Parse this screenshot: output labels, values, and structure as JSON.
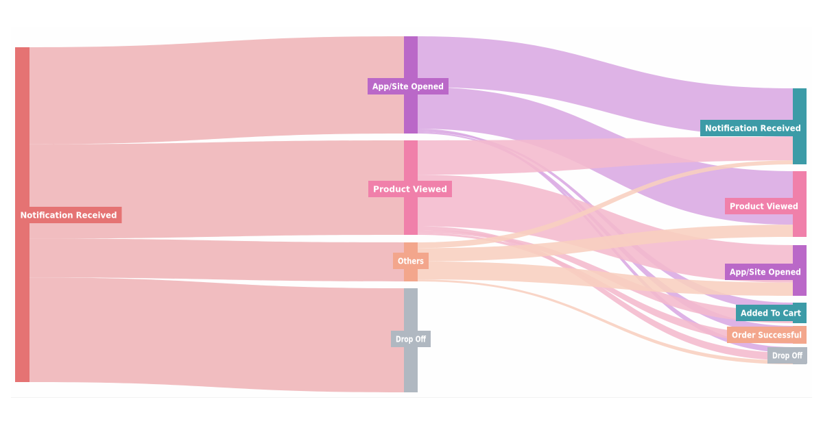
{
  "colors": {
    "notification": "#e57373",
    "app_site": "#ba68c8",
    "product": "#f080aa",
    "others": "#f3a68c",
    "drop_off": "#b0b8c1",
    "teal": "#3c9ba7",
    "link_notification": "#efb4b7",
    "link_app": "#d9a9e3",
    "link_product": "#f4b9cd",
    "link_others": "#f8cfbf"
  },
  "nodes": [
    {
      "id": "n0",
      "label": "Notification Received",
      "stage": 0,
      "color": "notification"
    },
    {
      "id": "n1",
      "label": "App/Site Opened",
      "stage": 1,
      "color": "app_site"
    },
    {
      "id": "n2",
      "label": "Product Viewed",
      "stage": 1,
      "color": "product"
    },
    {
      "id": "n3",
      "label": "Others",
      "stage": 1,
      "color": "others"
    },
    {
      "id": "n4",
      "label": "Drop Off",
      "stage": 1,
      "color": "drop_off"
    },
    {
      "id": "n5",
      "label": "Notification Received",
      "stage": 2,
      "color": "teal"
    },
    {
      "id": "n6",
      "label": "Product Viewed",
      "stage": 2,
      "color": "product"
    },
    {
      "id": "n7",
      "label": "App/Site Opened",
      "stage": 2,
      "color": "app_site"
    },
    {
      "id": "n8",
      "label": "Added To Cart",
      "stage": 2,
      "color": "teal"
    },
    {
      "id": "n9",
      "label": "Order Successful",
      "stage": 2,
      "color": "others"
    },
    {
      "id": "n10",
      "label": "Drop Off",
      "stage": 2,
      "color": "drop_off"
    }
  ],
  "links": [
    {
      "source": "n0",
      "target": "n1",
      "value": 142,
      "color": "link_notification"
    },
    {
      "source": "n0",
      "target": "n2",
      "value": 138,
      "color": "link_notification"
    },
    {
      "source": "n0",
      "target": "n3",
      "value": 57,
      "color": "link_notification"
    },
    {
      "source": "n0",
      "target": "n4",
      "value": 153,
      "color": "link_notification"
    },
    {
      "source": "n1",
      "target": "n5",
      "value": 74,
      "color": "link_app"
    },
    {
      "source": "n1",
      "target": "n6",
      "value": 61,
      "color": "link_app"
    },
    {
      "source": "n1",
      "target": "n10",
      "value": 3,
      "color": "link_app"
    },
    {
      "source": "n1",
      "target": "n8",
      "value": 2,
      "color": "link_app"
    },
    {
      "source": "n1",
      "target": "n9",
      "value": 2,
      "color": "link_app"
    },
    {
      "source": "n2",
      "target": "n5",
      "value": 36,
      "color": "link_product"
    },
    {
      "source": "n2",
      "target": "n7",
      "value": 54,
      "color": "link_product"
    },
    {
      "source": "n2",
      "target": "n10",
      "value": 4,
      "color": "link_product"
    },
    {
      "source": "n2",
      "target": "n8",
      "value": 3,
      "color": "link_product"
    },
    {
      "source": "n2",
      "target": "n9",
      "value": 2,
      "color": "link_product"
    },
    {
      "source": "n3",
      "target": "n5",
      "value": 6,
      "color": "link_others"
    },
    {
      "source": "n3",
      "target": "n6",
      "value": 14,
      "color": "link_others"
    },
    {
      "source": "n3",
      "target": "n7",
      "value": 19,
      "color": "link_others"
    },
    {
      "source": "n3",
      "target": "n10",
      "value": 2,
      "color": "link_others"
    }
  ]
}
